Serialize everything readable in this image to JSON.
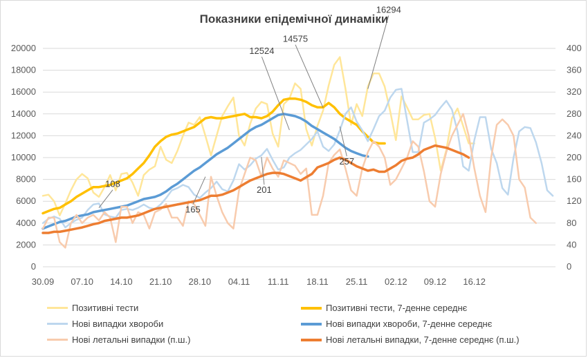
{
  "chart_data": {
    "type": "line",
    "title": "Показники епідемічної динаміки",
    "x_tick_labels": [
      "30.09",
      "07.10",
      "14.10",
      "21.10",
      "28.10",
      "04.11",
      "11.11",
      "18.11",
      "25.11",
      "02.12",
      "09.12",
      "16.12"
    ],
    "x_tick_day_index": [
      0,
      7,
      14,
      21,
      28,
      35,
      42,
      49,
      56,
      63,
      70,
      77
    ],
    "left_axis": {
      "ylim": [
        0,
        20000
      ],
      "ticks": [
        "0",
        "2000",
        "4000",
        "6000",
        "8000",
        "10000",
        "12000",
        "14000",
        "16000",
        "18000",
        "20000"
      ]
    },
    "right_axis": {
      "ylim": [
        0,
        400
      ],
      "ticks": [
        "0",
        "40",
        "80",
        "120",
        "160",
        "200",
        "240",
        "280",
        "320",
        "360",
        "400"
      ]
    },
    "series": [
      {
        "name": "Позитивні тести",
        "axis": "left",
        "color": "#ffe699",
        "width": 2.5,
        "values": [
          6500,
          6600,
          6000,
          4700,
          5800,
          7000,
          8000,
          8500,
          8100,
          6800,
          6400,
          7300,
          8400,
          7000,
          8500,
          8600,
          7700,
          6500,
          8400,
          8900,
          9200,
          11000,
          9800,
          9500,
          10600,
          12000,
          13200,
          13000,
          13700,
          12000,
          10200,
          12000,
          13800,
          14700,
          15500,
          12000,
          11100,
          13100,
          14500,
          15100,
          14900,
          12200,
          11000,
          14900,
          15400,
          16800,
          16300,
          12600,
          11100,
          12900,
          14300,
          16600,
          18500,
          19200,
          16300,
          13000,
          14900,
          13800,
          16500,
          17700,
          17700,
          16500,
          14200,
          11600,
          15600,
          14600,
          13500,
          13500,
          13900,
          14000,
          11800,
          8800,
          10700,
          13600,
          14500,
          12900,
          11300,
          11300
        ],
        "x_offset": 0
      },
      {
        "name": "Позитивні тести, 7-денне середнє",
        "axis": "left",
        "color": "#ffc000",
        "width": 3.5,
        "values": [
          4900,
          5100,
          5300,
          5400,
          5700,
          6000,
          6400,
          6700,
          7000,
          7300,
          7300,
          7400,
          7500,
          7700,
          7900,
          8100,
          8500,
          9000,
          9500,
          10200,
          11000,
          11500,
          11900,
          12100,
          12200,
          12400,
          12600,
          12800,
          13200,
          13600,
          13700,
          13600,
          13600,
          13700,
          13800,
          13900,
          14000,
          13700,
          13700,
          13600,
          13800,
          14200,
          14800,
          15300,
          15400,
          15400,
          15300,
          15100,
          14800,
          14600,
          14600,
          15000,
          14600,
          14000,
          13600,
          13300,
          13000,
          12400,
          11900,
          11400,
          11300,
          11300
        ],
        "x_offset": 0
      },
      {
        "name": "Нові випадки хвороби",
        "axis": "left",
        "color": "#bdd7ee",
        "width": 2.5,
        "values": [
          4000,
          4400,
          4600,
          4400,
          3600,
          4000,
          4300,
          4500,
          5200,
          5700,
          5800,
          4800,
          4600,
          4500,
          5200,
          5300,
          5200,
          5400,
          5700,
          5400,
          5300,
          5700,
          6300,
          7000,
          7200,
          7500,
          7300,
          6600,
          6300,
          6800,
          7200,
          7800,
          7100,
          6900,
          7900,
          9400,
          8900,
          9300,
          9900,
          10200,
          10800,
          9800,
          8900,
          9100,
          10000,
          10400,
          10700,
          11200,
          11700,
          12400,
          11000,
          10600,
          11200,
          12500,
          14000,
          14600,
          13300,
          12500,
          11500,
          12600,
          13800,
          14300,
          15500,
          16200,
          16300,
          13400,
          10500,
          10500,
          13200,
          13500,
          13900,
          14600,
          15200,
          14400,
          12400,
          9200,
          8800,
          11600,
          13700,
          13700,
          10800,
          9500,
          7200,
          6600,
          10000,
          12400,
          12800,
          12700,
          11400,
          9500,
          7000,
          6500
        ],
        "x_offset": 0
      },
      {
        "name": "Нові випадки хвороби, 7-денне середнє",
        "axis": "left",
        "color": "#5b9bd5",
        "width": 3.5,
        "values": [
          3500,
          3700,
          3900,
          4100,
          4200,
          4400,
          4600,
          4700,
          4800,
          5000,
          5100,
          5200,
          5300,
          5400,
          5500,
          5600,
          5800,
          6000,
          6200,
          6300,
          6400,
          6600,
          6900,
          7300,
          7600,
          8000,
          8400,
          8800,
          9100,
          9500,
          9900,
          10300,
          10600,
          10900,
          11300,
          11700,
          12100,
          12500,
          12800,
          13000,
          13300,
          13600,
          13900,
          14000,
          13900,
          13800,
          13600,
          13300,
          12900,
          12600,
          12300,
          12000,
          11700,
          11300,
          10900,
          10600,
          10400,
          10200,
          10100
        ],
        "x_offset": 0
      },
      {
        "name": "Нові летальні випадки (п.ш.)",
        "axis": "right",
        "color": "#f8cbad",
        "width": 2.5,
        "values": [
          70,
          90,
          90,
          45,
          35,
          80,
          95,
          80,
          90,
          95,
          85,
          100,
          90,
          45,
          110,
          110,
          80,
          100,
          95,
          70,
          100,
          105,
          115,
          90,
          90,
          75,
          120,
          115,
          95,
          75,
          165,
          130,
          100,
          80,
          70,
          140,
          170,
          200,
          195,
          165,
          200,
          180,
          165,
          195,
          190,
          185,
          170,
          180,
          95,
          95,
          130,
          190,
          205,
          215,
          180,
          140,
          130,
          180,
          210,
          230,
          220,
          200,
          150,
          160,
          180,
          200,
          230,
          220,
          175,
          120,
          110,
          170,
          210,
          240,
          260,
          280,
          240,
          180,
          130,
          100,
          200,
          260,
          270,
          260,
          240,
          160,
          145,
          90,
          80
        ],
        "x_offset": 0
      },
      {
        "name": "Нові летальні випадки, 7-денне середнє (п.ш.)",
        "axis": "right",
        "color": "#ed7d31",
        "width": 3.5,
        "values": [
          62,
          62,
          64,
          64,
          66,
          68,
          70,
          72,
          75,
          78,
          80,
          84,
          86,
          88,
          90,
          90,
          92,
          94,
          98,
          102,
          106,
          108,
          110,
          112,
          114,
          116,
          118,
          120,
          122,
          126,
          130,
          130,
          132,
          136,
          140,
          146,
          152,
          158,
          162,
          166,
          170,
          172,
          172,
          170,
          166,
          162,
          158,
          164,
          170,
          182,
          186,
          190,
          196,
          200,
          196,
          190,
          184,
          180,
          176,
          178,
          174,
          174,
          180,
          186,
          194,
          198,
          200,
          206,
          214,
          218,
          222,
          220,
          218,
          214,
          210,
          206,
          200
        ],
        "x_offset": 0
      }
    ],
    "annotations": [
      {
        "text": "108",
        "x": 10,
        "y": 108,
        "axis": "right"
      },
      {
        "text": "165",
        "x": 29,
        "y": 165,
        "axis": "right"
      },
      {
        "text": "201",
        "x": 39,
        "y": 201,
        "axis": "right"
      },
      {
        "text": "257",
        "x": 53,
        "y": 257,
        "axis": "right"
      },
      {
        "text": "12524",
        "x": 44,
        "y": 12524,
        "axis": "left"
      },
      {
        "text": "14575",
        "x": 50,
        "y": 14575,
        "axis": "left"
      },
      {
        "text": "16294",
        "x": 58,
        "y": 16294,
        "axis": "left"
      }
    ],
    "legend": [
      {
        "label": "Позитивні тести",
        "color": "#ffe699",
        "bold": false
      },
      {
        "label": "Позитивні тести, 7-денне середнє",
        "color": "#ffc000",
        "bold": true
      },
      {
        "label": "Нові випадки хвороби",
        "color": "#bdd7ee",
        "bold": false
      },
      {
        "label": "Нові випадки хвороби, 7-денне середнє",
        "color": "#5b9bd5",
        "bold": true
      },
      {
        "label": "Нові летальні випадки (п.ш.)",
        "color": "#f8cbad",
        "bold": false
      },
      {
        "label": "Нові летальні випадки, 7-денне середнє (п.ш.)",
        "color": "#ed7d31",
        "bold": true
      }
    ]
  }
}
